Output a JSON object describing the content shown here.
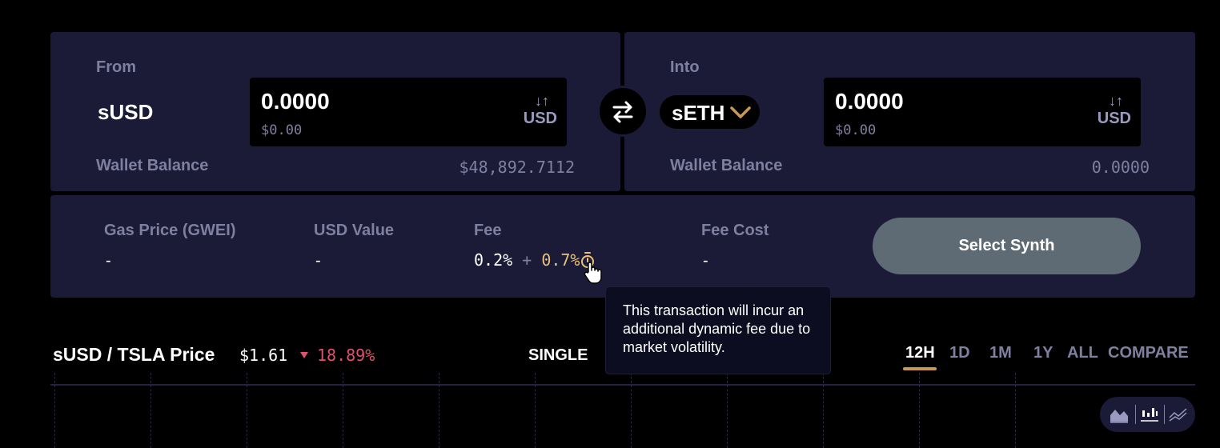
{
  "from": {
    "label": "From",
    "currency": "sUSD",
    "amount": "0.0000",
    "amount_usd": "$0.00",
    "unit": "USD",
    "wallet_label": "Wallet Balance",
    "wallet_value": "$48,892.7112"
  },
  "into": {
    "label": "Into",
    "currency": "sETH",
    "amount": "0.0000",
    "amount_usd": "$0.00",
    "unit": "USD",
    "wallet_label": "Wallet Balance",
    "wallet_value": "0.0000"
  },
  "stats": {
    "gas_label": "Gas Price (GWEI)",
    "gas_value": "-",
    "usd_label": "USD Value",
    "usd_value": "-",
    "fee_label": "Fee",
    "fee_base": "0.2%",
    "fee_plus": "+",
    "fee_dynamic": "0.7%",
    "fee_cost_label": "Fee Cost",
    "fee_cost_value": "-",
    "action_button": "Select Synth"
  },
  "tooltip": {
    "text": "This transaction will incur an additional dynamic fee due to market volatility."
  },
  "chart": {
    "pair": "sUSD / TSLA Price",
    "price": "$1.61",
    "change": "18.89%",
    "mode": "SINGLE",
    "timeframes": [
      "12H",
      "1D",
      "1M",
      "1Y",
      "ALL"
    ],
    "active_timeframe": "12H",
    "compare": "COMPARE"
  },
  "colors": {
    "panel": "#1b1b38",
    "accent_gold": "#e9c276",
    "negative": "#e0516b",
    "muted": "#7f7f9f",
    "button": "#5f6b74"
  },
  "icons": {
    "swap": "swap-arrows-icon",
    "unit_toggle": "up-down-arrows-icon",
    "dropdown": "chevron-down-icon",
    "fee_info": "stopwatch-icon",
    "cursor": "hand-pointer-icon",
    "change_direction": "triangle-down-icon",
    "chart_types": [
      "area-chart-icon",
      "candlestick-chart-icon",
      "line-chart-icon"
    ]
  }
}
